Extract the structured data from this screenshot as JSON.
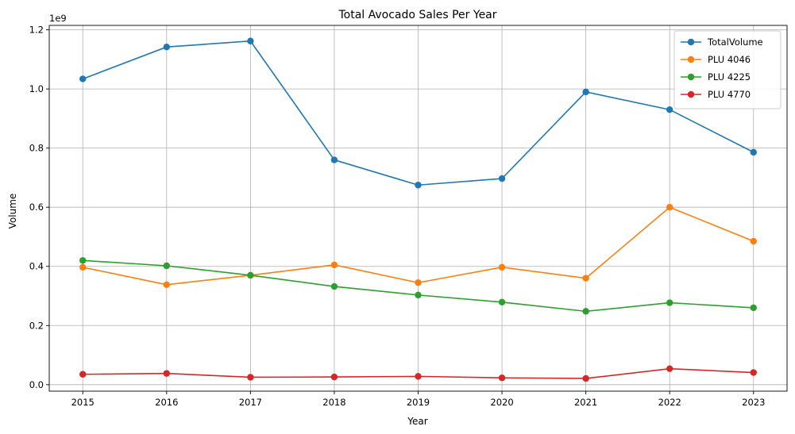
{
  "chart_data": {
    "type": "line",
    "title": "Total Avocado Sales Per Year",
    "xlabel": "Year",
    "ylabel": "Volume",
    "offset_label": "1e9",
    "x": [
      2015,
      2016,
      2017,
      2018,
      2019,
      2020,
      2021,
      2022,
      2023
    ],
    "xlim": [
      2014.6,
      2023.4
    ],
    "ylim": [
      -0.022,
      1.215
    ],
    "yticks": [
      0.0,
      0.2,
      0.4,
      0.6,
      0.8,
      1.0,
      1.2
    ],
    "ytick_labels": [
      "0.0",
      "0.2",
      "0.4",
      "0.6",
      "0.8",
      "1.0",
      "1.2"
    ],
    "grid": true,
    "legend_position": "top-right",
    "y_scale_note": "values in units of 1e9",
    "series": [
      {
        "name": "TotalVolume",
        "color": "#1f77b4",
        "values": [
          1.034,
          1.142,
          1.162,
          0.76,
          0.675,
          0.697,
          0.99,
          0.93,
          0.786
        ]
      },
      {
        "name": "PLU 4046",
        "color": "#ff7f0e",
        "values": [
          0.397,
          0.338,
          0.37,
          0.405,
          0.345,
          0.397,
          0.36,
          0.6,
          0.485
        ]
      },
      {
        "name": "PLU 4225",
        "color": "#2ca02c",
        "values": [
          0.42,
          0.402,
          0.37,
          0.332,
          0.303,
          0.279,
          0.248,
          0.277,
          0.26
        ]
      },
      {
        "name": "PLU 4770",
        "color": "#d62728",
        "values": [
          0.035,
          0.038,
          0.025,
          0.026,
          0.028,
          0.023,
          0.021,
          0.054,
          0.041
        ]
      }
    ]
  }
}
